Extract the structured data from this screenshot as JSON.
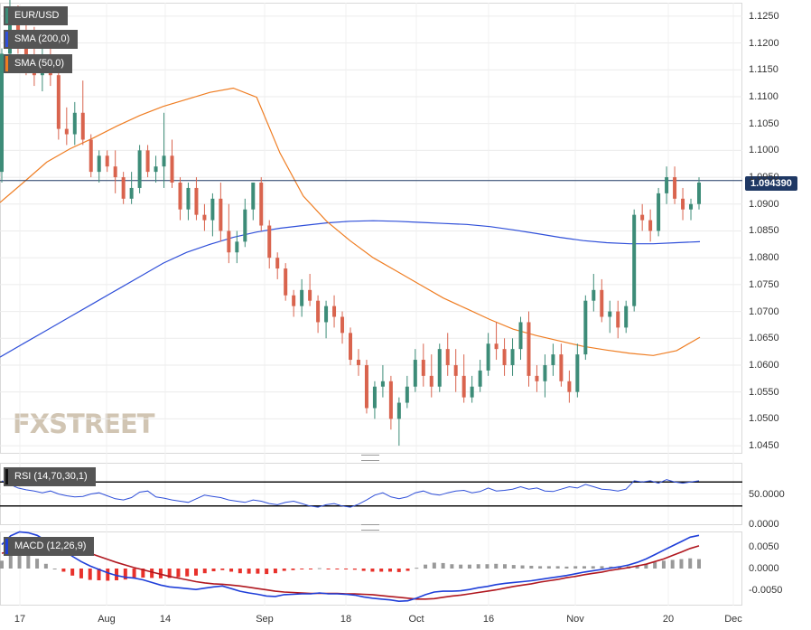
{
  "chart_data": [
    {
      "type": "candlestick",
      "title": "EUR/USD",
      "legend": [
        "EUR/USD",
        "SMA (200,0)",
        "SMA (50,0)"
      ],
      "y_ticks": [
        "1.1250",
        "1.1200",
        "1.1150",
        "1.1100",
        "1.1050",
        "1.1000",
        "1.0950",
        "1.0900",
        "1.0850",
        "1.0800",
        "1.0750",
        "1.0700",
        "1.0650",
        "1.0600",
        "1.0550",
        "1.0500",
        "1.0450"
      ],
      "ylim": [
        1.0435,
        1.1275
      ],
      "last_price": "1.094390",
      "last_price_value": 1.09439,
      "x_ticks": [
        "17",
        "Aug",
        "14",
        "Sep",
        "18",
        "Oct",
        "16",
        "Nov",
        "20",
        "Dec"
      ],
      "candles": [
        [
          1.096,
          1.119,
          1.094,
          1.118
        ],
        [
          1.118,
          1.128,
          1.116,
          1.124
        ],
        [
          1.124,
          1.127,
          1.118,
          1.121
        ],
        [
          1.121,
          1.126,
          1.114,
          1.116
        ],
        [
          1.116,
          1.123,
          1.112,
          1.114
        ],
        [
          1.114,
          1.119,
          1.111,
          1.117
        ],
        [
          1.117,
          1.121,
          1.112,
          1.114
        ],
        [
          1.114,
          1.117,
          1.102,
          1.104
        ],
        [
          1.104,
          1.108,
          1.101,
          1.103
        ],
        [
          1.103,
          1.109,
          1.101,
          1.107
        ],
        [
          1.107,
          1.113,
          1.101,
          1.102
        ],
        [
          1.102,
          1.103,
          1.095,
          1.096
        ],
        [
          1.096,
          1.1,
          1.094,
          1.099
        ],
        [
          1.099,
          1.1,
          1.096,
          1.097
        ],
        [
          1.097,
          1.1,
          1.092,
          1.095
        ],
        [
          1.095,
          1.096,
          1.09,
          1.091
        ],
        [
          1.091,
          1.096,
          1.09,
          1.093
        ],
        [
          1.093,
          1.101,
          1.092,
          1.1
        ],
        [
          1.1,
          1.101,
          1.095,
          1.096
        ],
        [
          1.096,
          1.099,
          1.094,
          1.097
        ],
        [
          1.097,
          1.107,
          1.093,
          1.099
        ],
        [
          1.099,
          1.102,
          1.093,
          1.094
        ],
        [
          1.094,
          1.095,
          1.087,
          1.089
        ],
        [
          1.089,
          1.094,
          1.087,
          1.093
        ],
        [
          1.093,
          1.095,
          1.087,
          1.088
        ],
        [
          1.088,
          1.09,
          1.085,
          1.087
        ],
        [
          1.087,
          1.092,
          1.084,
          1.091
        ],
        [
          1.091,
          1.094,
          1.083,
          1.085
        ],
        [
          1.085,
          1.09,
          1.079,
          1.081
        ],
        [
          1.081,
          1.085,
          1.079,
          1.083
        ],
        [
          1.083,
          1.091,
          1.082,
          1.089
        ],
        [
          1.089,
          1.094,
          1.087,
          1.094
        ],
        [
          1.094,
          1.095,
          1.085,
          1.086
        ],
        [
          1.086,
          1.087,
          1.078,
          1.08
        ],
        [
          1.08,
          1.081,
          1.076,
          1.078
        ],
        [
          1.078,
          1.079,
          1.072,
          1.073
        ],
        [
          1.073,
          1.074,
          1.069,
          1.071
        ],
        [
          1.071,
          1.076,
          1.069,
          1.074
        ],
        [
          1.074,
          1.077,
          1.071,
          1.072
        ],
        [
          1.072,
          1.073,
          1.066,
          1.068
        ],
        [
          1.068,
          1.072,
          1.065,
          1.071
        ],
        [
          1.071,
          1.073,
          1.067,
          1.069
        ],
        [
          1.069,
          1.07,
          1.064,
          1.066
        ],
        [
          1.066,
          1.067,
          1.06,
          1.061
        ],
        [
          1.061,
          1.063,
          1.058,
          1.06
        ],
        [
          1.06,
          1.061,
          1.051,
          1.052
        ],
        [
          1.052,
          1.057,
          1.05,
          1.056
        ],
        [
          1.056,
          1.06,
          1.054,
          1.057
        ],
        [
          1.057,
          1.058,
          1.048,
          1.05
        ],
        [
          1.05,
          1.054,
          1.045,
          1.053
        ],
        [
          1.053,
          1.058,
          1.052,
          1.056
        ],
        [
          1.056,
          1.063,
          1.055,
          1.061
        ],
        [
          1.061,
          1.064,
          1.056,
          1.058
        ],
        [
          1.058,
          1.062,
          1.054,
          1.056
        ],
        [
          1.056,
          1.064,
          1.055,
          1.063
        ],
        [
          1.063,
          1.066,
          1.058,
          1.06
        ],
        [
          1.06,
          1.063,
          1.055,
          1.058
        ],
        [
          1.058,
          1.062,
          1.053,
          1.054
        ],
        [
          1.054,
          1.058,
          1.053,
          1.056
        ],
        [
          1.056,
          1.061,
          1.055,
          1.059
        ],
        [
          1.059,
          1.066,
          1.058,
          1.064
        ],
        [
          1.064,
          1.068,
          1.061,
          1.063
        ],
        [
          1.063,
          1.065,
          1.058,
          1.06
        ],
        [
          1.06,
          1.065,
          1.058,
          1.063
        ],
        [
          1.063,
          1.069,
          1.061,
          1.068
        ],
        [
          1.068,
          1.07,
          1.056,
          1.058
        ],
        [
          1.058,
          1.06,
          1.055,
          1.057
        ],
        [
          1.057,
          1.062,
          1.054,
          1.06
        ],
        [
          1.06,
          1.064,
          1.058,
          1.062
        ],
        [
          1.062,
          1.064,
          1.056,
          1.057
        ],
        [
          1.057,
          1.059,
          1.053,
          1.055
        ],
        [
          1.055,
          1.064,
          1.054,
          1.062
        ],
        [
          1.062,
          1.073,
          1.061,
          1.072
        ],
        [
          1.072,
          1.077,
          1.07,
          1.074
        ],
        [
          1.074,
          1.076,
          1.068,
          1.069
        ],
        [
          1.069,
          1.072,
          1.066,
          1.07
        ],
        [
          1.07,
          1.072,
          1.065,
          1.067
        ],
        [
          1.067,
          1.072,
          1.066,
          1.071
        ],
        [
          1.071,
          1.089,
          1.07,
          1.088
        ],
        [
          1.088,
          1.09,
          1.085,
          1.087
        ],
        [
          1.087,
          1.089,
          1.083,
          1.085
        ],
        [
          1.085,
          1.093,
          1.084,
          1.092
        ],
        [
          1.092,
          1.097,
          1.09,
          1.095
        ],
        [
          1.095,
          1.097,
          1.09,
          1.091
        ],
        [
          1.091,
          1.093,
          1.087,
          1.089
        ],
        [
          1.089,
          1.091,
          1.087,
          1.09
        ],
        [
          1.09,
          1.095,
          1.089,
          1.094
        ]
      ],
      "sma200": [
        1.0615,
        1.064,
        1.0665,
        1.069,
        1.0715,
        1.074,
        1.0765,
        1.079,
        1.081,
        1.0825,
        1.0838,
        1.0848,
        1.0855,
        1.086,
        1.0865,
        1.0868,
        1.0869,
        1.0868,
        1.0866,
        1.0864,
        1.0862,
        1.0858,
        1.0852,
        1.0845,
        1.0838,
        1.0832,
        1.0828,
        1.0826,
        1.0826,
        1.0828,
        1.083
      ],
      "sma50": [
        1.0903,
        1.094,
        1.0978,
        1.1003,
        1.1023,
        1.1045,
        1.1065,
        1.1082,
        1.1095,
        1.1108,
        1.1116,
        1.1099,
        1.0995,
        1.0915,
        1.0868,
        1.0832,
        1.08,
        1.0775,
        1.075,
        1.0725,
        1.0705,
        1.0685,
        1.0667,
        1.0655,
        1.0645,
        1.0635,
        1.0628,
        1.0622,
        1.0618,
        1.0627,
        1.0652
      ]
    },
    {
      "type": "line",
      "title": "RSI (14,70,30,1)",
      "y_ticks": [
        "50.0000",
        "0.0000"
      ],
      "ylim": [
        -2,
        102
      ],
      "guide_levels": [
        70,
        30
      ],
      "values": [
        72,
        66,
        60,
        57,
        55,
        52,
        55,
        50,
        47,
        45,
        46,
        50,
        52,
        47,
        42,
        40,
        44,
        53,
        55,
        45,
        43,
        40,
        38,
        36,
        42,
        48,
        46,
        44,
        40,
        38,
        36,
        40,
        38,
        34,
        32,
        36,
        38,
        34,
        30,
        28,
        32,
        34,
        30,
        28,
        33,
        40,
        48,
        52,
        45,
        42,
        45,
        52,
        55,
        50,
        48,
        52,
        55,
        56,
        52,
        54,
        60,
        55,
        56,
        58,
        62,
        58,
        60,
        55,
        54,
        58,
        62,
        60,
        66,
        62,
        58,
        57,
        55,
        58,
        72,
        70,
        72,
        68,
        74,
        70,
        68,
        70,
        72
      ],
      "last_value": 72
    },
    {
      "type": "bar+line",
      "title": "MACD (12,26,9)",
      "y_ticks": [
        "0.0050",
        "0.0000",
        "-0.0050"
      ],
      "ylim": [
        -0.0085,
        0.0085
      ],
      "macd": [
        0.0055,
        0.0075,
        0.0084,
        0.0082,
        0.0076,
        0.0064,
        0.0052,
        0.0042,
        0.0028,
        0.0016,
        0.0006,
        -0.0002,
        -0.001,
        -0.0016,
        -0.002,
        -0.0022,
        -0.0026,
        -0.0032,
        -0.0038,
        -0.0042,
        -0.0044,
        -0.0046,
        -0.0048,
        -0.0045,
        -0.0042,
        -0.004,
        -0.0046,
        -0.0052,
        -0.0056,
        -0.0059,
        -0.0063,
        -0.0064,
        -0.006,
        -0.0059,
        -0.0058,
        -0.0058,
        -0.0056,
        -0.0058,
        -0.0058,
        -0.0059,
        -0.0061,
        -0.0065,
        -0.0068,
        -0.007,
        -0.0072,
        -0.0075,
        -0.0074,
        -0.0068,
        -0.006,
        -0.0054,
        -0.0052,
        -0.0052,
        -0.0051,
        -0.0048,
        -0.0044,
        -0.0041,
        -0.0037,
        -0.0034,
        -0.0032,
        -0.003,
        -0.0028,
        -0.0025,
        -0.0022,
        -0.0019,
        -0.0016,
        -0.0012,
        -0.0008,
        -0.0005,
        -0.0002,
        0.0001,
        0.0004,
        0.0008,
        0.0014,
        0.0022,
        0.0032,
        0.0042,
        0.0052,
        0.0062,
        0.0072,
        0.0076
      ],
      "signal": [
        0.0035,
        0.004,
        0.0045,
        0.0049,
        0.0051,
        0.0052,
        0.0052,
        0.005,
        0.0046,
        0.0041,
        0.0035,
        0.0028,
        0.0021,
        0.0014,
        0.0008,
        0.0002,
        -0.0003,
        -0.0008,
        -0.0013,
        -0.0018,
        -0.0022,
        -0.0026,
        -0.003,
        -0.0033,
        -0.0035,
        -0.0036,
        -0.0038,
        -0.004,
        -0.0043,
        -0.0046,
        -0.0049,
        -0.0052,
        -0.0054,
        -0.0055,
        -0.0056,
        -0.0057,
        -0.0057,
        -0.0057,
        -0.0057,
        -0.0058,
        -0.0058,
        -0.0059,
        -0.006,
        -0.0062,
        -0.0064,
        -0.0066,
        -0.0068,
        -0.007,
        -0.007,
        -0.0069,
        -0.0066,
        -0.0063,
        -0.0061,
        -0.0058,
        -0.0055,
        -0.0052,
        -0.0049,
        -0.0045,
        -0.0041,
        -0.0038,
        -0.0035,
        -0.0031,
        -0.0028,
        -0.0025,
        -0.0021,
        -0.0018,
        -0.0014,
        -0.0011,
        -0.0008,
        -0.0004,
        -0.0001,
        0.0002,
        0.0006,
        0.001,
        0.0016,
        0.0022,
        0.003,
        0.0038,
        0.0046,
        0.0052
      ]
    }
  ],
  "watermark": "FXSTREET",
  "colors": {
    "up": "#3d8c78",
    "down": "#d9644e",
    "sma200": "#2f4fd9",
    "sma50": "#ef7d22",
    "rsi": "#2f4fd9",
    "macd": "#1f3fd9",
    "signal": "#b0171f",
    "hist_pos": "#999999",
    "hist_neg": "#e8312b",
    "price_line": "#1f3864"
  }
}
